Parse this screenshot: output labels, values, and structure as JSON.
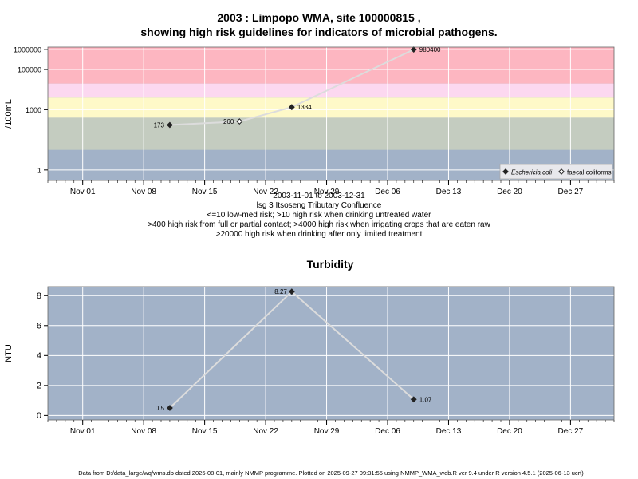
{
  "header": {
    "title_line1": "2003 : Limpopo WMA, site 100000815 ,",
    "title_line2": "showing high risk guidelines for indicators of microbial pathogens."
  },
  "captions": [
    "2003-11-01 to 2003-12-31",
    "lsg 3 Itsoseng Tributary Confluence",
    "<=10 low-med risk; >10 high risk when drinking untreated water",
    ">400 high risk from full or partial contact; >4000 high risk when irrigating crops that are eaten raw",
    ">20000 high risk when drinking after only limited treatment"
  ],
  "footer": "Data from D:/data_large/wq/wms.db dated 2025-08-01, mainly NMMP programme. Plotted on 2025-09-27 09:31:55 using NMMP_WMA_web.R ver 9.4 under R version 4.5.1 (2025-06-13 ucrt)",
  "colors": {
    "panel_bg": "#a2b2c8",
    "band_low": "#c4ccc0",
    "band_yellow": "#fef9c8",
    "band_pink_light": "#fcd8f0",
    "band_pink": "#fdb6c1",
    "series_line": "#dcdcdc",
    "grid": "#ffffff"
  },
  "chart_data": [
    {
      "type": "scatter",
      "title": "",
      "ylabel": "/100mL",
      "xlabel": "",
      "y_scale": "log",
      "xlim": [
        "2003-10-28",
        "2004-01-01"
      ],
      "ylim": [
        0.3,
        1300000
      ],
      "x_ticks": [
        "2003-11-01",
        "2003-11-08",
        "2003-11-15",
        "2003-11-22",
        "2003-11-29",
        "2003-12-06",
        "2003-12-13",
        "2003-12-20",
        "2003-12-27"
      ],
      "x_tick_labels": [
        "Nov 01",
        "Nov 08",
        "Nov 15",
        "Nov 22",
        "Nov 29",
        "Dec 06",
        "Dec 13",
        "Dec 20",
        "Dec 27"
      ],
      "y_ticks": [
        1,
        1000,
        100000,
        1000000
      ],
      "y_tick_labels": [
        "1",
        "1000",
        "100000",
        "1000000"
      ],
      "risk_bands": [
        {
          "from": 0.3,
          "to": 10,
          "color": "panel_bg"
        },
        {
          "from": 10,
          "to": 400,
          "color": "band_low"
        },
        {
          "from": 400,
          "to": 4000,
          "color": "band_yellow"
        },
        {
          "from": 4000,
          "to": 20000,
          "color": "band_pink_light"
        },
        {
          "from": 20000,
          "to": 1300000,
          "color": "band_pink"
        }
      ],
      "series": [
        {
          "name": "Eschericia coli",
          "marker": "filled-diamond",
          "points": [
            {
              "x": "2003-11-11",
              "y": 173
            },
            {
              "x": "2003-11-25",
              "y": 1334
            },
            {
              "x": "2003-12-09",
              "y": 980400
            }
          ]
        },
        {
          "name": "faecal coliforms",
          "marker": "open-diamond",
          "points": [
            {
              "x": "2003-11-19",
              "y": 260
            }
          ]
        }
      ],
      "line_order": [
        {
          "x": "2003-11-11",
          "y": 173
        },
        {
          "x": "2003-11-19",
          "y": 260
        },
        {
          "x": "2003-11-25",
          "y": 1334
        },
        {
          "x": "2003-12-09",
          "y": 980400
        }
      ],
      "point_labels": [
        "173",
        "260",
        "1334",
        "980400"
      ],
      "legend": {
        "placement": "bottom-right",
        "entries": [
          "Eschericia coli",
          "faecal coliforms"
        ]
      },
      "grid": true
    },
    {
      "type": "line",
      "title": "Turbidity",
      "ylabel": "NTU",
      "xlabel": "",
      "xlim": [
        "2003-10-28",
        "2004-01-01"
      ],
      "ylim": [
        -0.3,
        8.6
      ],
      "x_ticks": [
        "2003-11-01",
        "2003-11-08",
        "2003-11-15",
        "2003-11-22",
        "2003-11-29",
        "2003-12-06",
        "2003-12-13",
        "2003-12-20",
        "2003-12-27"
      ],
      "x_tick_labels": [
        "Nov 01",
        "Nov 08",
        "Nov 15",
        "Nov 22",
        "Nov 29",
        "Dec 06",
        "Dec 13",
        "Dec 20",
        "Dec 27"
      ],
      "y_ticks": [
        0,
        2,
        4,
        6,
        8
      ],
      "y_tick_labels": [
        "0",
        "2",
        "4",
        "6",
        "8"
      ],
      "series": [
        {
          "name": "",
          "points": [
            {
              "x": "2003-11-11",
              "y": 0.5
            },
            {
              "x": "2003-11-25",
              "y": 8.27
            },
            {
              "x": "2003-12-09",
              "y": 1.07
            }
          ]
        }
      ],
      "point_labels": [
        "0.5",
        "8.27",
        "1.07"
      ],
      "grid": true
    }
  ]
}
